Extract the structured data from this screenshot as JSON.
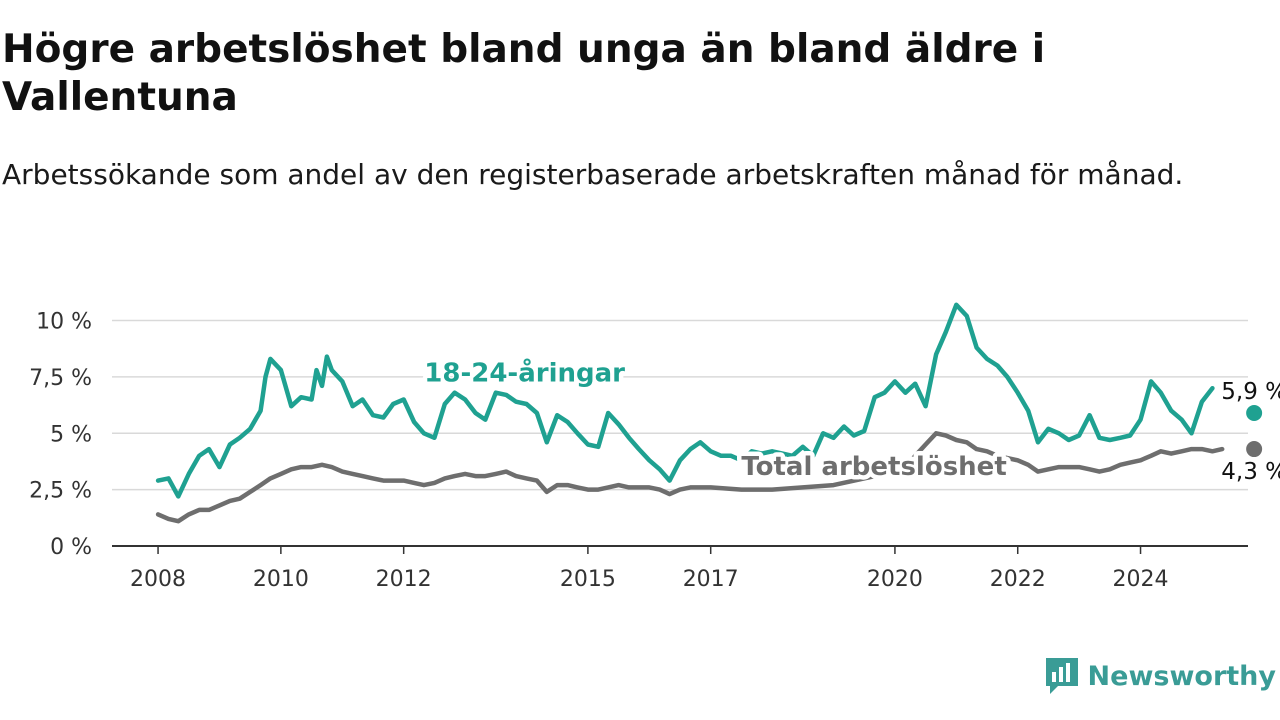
{
  "title": "Högre arbetslöshet bland unga än bland äldre i Vallentuna",
  "subtitle": "Arbetssökande som andel av den registerbaserade arbetskraften månad för månad.",
  "brand": {
    "name": "Newsworthy",
    "icon": "newsworthy-logo-icon",
    "color": "#3a9c96"
  },
  "chart_data": {
    "type": "line",
    "yticks": [
      {
        "value": 0,
        "label": "0 %"
      },
      {
        "value": 2.5,
        "label": "2,5 %"
      },
      {
        "value": 5,
        "label": "5 %"
      },
      {
        "value": 7.5,
        "label": "7,5 %"
      },
      {
        "value": 10,
        "label": "10 %"
      }
    ],
    "xticks": [
      {
        "value": 2008,
        "label": "2008"
      },
      {
        "value": 2010,
        "label": "2010"
      },
      {
        "value": 2012,
        "label": "2012"
      },
      {
        "value": 2015,
        "label": "2015"
      },
      {
        "value": 2017,
        "label": "2017"
      },
      {
        "value": 2020,
        "label": "2020"
      },
      {
        "value": 2022,
        "label": "2022"
      },
      {
        "value": 2024,
        "label": "2024"
      }
    ],
    "xlim": [
      2007.25,
      2025.75
    ],
    "ylim": [
      0,
      11
    ],
    "grid": true,
    "series": [
      {
        "name": "18-24-åringar",
        "color": "#1fa191",
        "end_label": "5,9 %",
        "points": [
          [
            2008.0,
            2.9
          ],
          [
            2008.17,
            3.0
          ],
          [
            2008.33,
            2.2
          ],
          [
            2008.5,
            3.2
          ],
          [
            2008.67,
            4.0
          ],
          [
            2008.83,
            4.3
          ],
          [
            2009.0,
            3.5
          ],
          [
            2009.17,
            4.5
          ],
          [
            2009.33,
            4.8
          ],
          [
            2009.5,
            5.2
          ],
          [
            2009.67,
            6.0
          ],
          [
            2009.75,
            7.5
          ],
          [
            2009.83,
            8.3
          ],
          [
            2010.0,
            7.8
          ],
          [
            2010.17,
            6.2
          ],
          [
            2010.33,
            6.6
          ],
          [
            2010.5,
            6.5
          ],
          [
            2010.58,
            7.8
          ],
          [
            2010.67,
            7.1
          ],
          [
            2010.75,
            8.4
          ],
          [
            2010.83,
            7.8
          ],
          [
            2011.0,
            7.3
          ],
          [
            2011.17,
            6.2
          ],
          [
            2011.33,
            6.5
          ],
          [
            2011.5,
            5.8
          ],
          [
            2011.67,
            5.7
          ],
          [
            2011.83,
            6.3
          ],
          [
            2012.0,
            6.5
          ],
          [
            2012.17,
            5.5
          ],
          [
            2012.33,
            5.0
          ],
          [
            2012.5,
            4.8
          ],
          [
            2012.67,
            6.3
          ],
          [
            2012.83,
            6.8
          ],
          [
            2013.0,
            6.5
          ],
          [
            2013.17,
            5.9
          ],
          [
            2013.33,
            5.6
          ],
          [
            2013.5,
            6.8
          ],
          [
            2013.67,
            6.7
          ],
          [
            2013.83,
            6.4
          ],
          [
            2014.0,
            6.3
          ],
          [
            2014.17,
            5.9
          ],
          [
            2014.33,
            4.6
          ],
          [
            2014.5,
            5.8
          ],
          [
            2014.67,
            5.5
          ],
          [
            2014.83,
            5.0
          ],
          [
            2015.0,
            4.5
          ],
          [
            2015.17,
            4.4
          ],
          [
            2015.33,
            5.9
          ],
          [
            2015.5,
            5.4
          ],
          [
            2015.67,
            4.8
          ],
          [
            2015.83,
            4.3
          ],
          [
            2016.0,
            3.8
          ],
          [
            2016.17,
            3.4
          ],
          [
            2016.33,
            2.9
          ],
          [
            2016.5,
            3.8
          ],
          [
            2016.67,
            4.3
          ],
          [
            2016.83,
            4.6
          ],
          [
            2017.0,
            4.2
          ],
          [
            2017.17,
            4.0
          ],
          [
            2017.33,
            4.0
          ],
          [
            2017.5,
            3.8
          ],
          [
            2017.67,
            4.2
          ],
          [
            2017.83,
            4.1
          ],
          [
            2018.0,
            4.2
          ],
          [
            2018.17,
            4.1
          ],
          [
            2018.33,
            4.0
          ],
          [
            2018.5,
            4.4
          ],
          [
            2018.67,
            4.0
          ],
          [
            2018.83,
            5.0
          ],
          [
            2019.0,
            4.8
          ],
          [
            2019.17,
            5.3
          ],
          [
            2019.33,
            4.9
          ],
          [
            2019.5,
            5.1
          ],
          [
            2019.67,
            6.6
          ],
          [
            2019.83,
            6.8
          ],
          [
            2020.0,
            7.3
          ],
          [
            2020.17,
            6.8
          ],
          [
            2020.33,
            7.2
          ],
          [
            2020.5,
            6.2
          ],
          [
            2020.67,
            8.5
          ],
          [
            2020.83,
            9.5
          ],
          [
            2021.0,
            10.7
          ],
          [
            2021.17,
            10.2
          ],
          [
            2021.33,
            8.8
          ],
          [
            2021.5,
            8.3
          ],
          [
            2021.67,
            8.0
          ],
          [
            2021.83,
            7.5
          ],
          [
            2022.0,
            6.8
          ],
          [
            2022.17,
            6.0
          ],
          [
            2022.33,
            4.6
          ],
          [
            2022.5,
            5.2
          ],
          [
            2022.67,
            5.0
          ],
          [
            2022.83,
            4.7
          ],
          [
            2023.0,
            4.9
          ],
          [
            2023.17,
            5.8
          ],
          [
            2023.33,
            4.8
          ],
          [
            2023.5,
            4.7
          ],
          [
            2023.67,
            4.8
          ],
          [
            2023.83,
            4.9
          ],
          [
            2024.0,
            5.6
          ],
          [
            2024.17,
            7.3
          ],
          [
            2024.33,
            6.8
          ],
          [
            2024.5,
            6.0
          ],
          [
            2024.67,
            5.6
          ],
          [
            2024.83,
            5.0
          ],
          [
            2025.0,
            6.4
          ],
          [
            2025.17,
            7.0
          ]
        ],
        "end_point": [
          2025.85,
          5.9
        ]
      },
      {
        "name": "Total arbetslöshet",
        "color": "#6e6e6e",
        "end_label": "4,3 %",
        "points": [
          [
            2008.0,
            1.4
          ],
          [
            2008.17,
            1.2
          ],
          [
            2008.33,
            1.1
          ],
          [
            2008.5,
            1.4
          ],
          [
            2008.67,
            1.6
          ],
          [
            2008.83,
            1.6
          ],
          [
            2009.0,
            1.8
          ],
          [
            2009.17,
            2.0
          ],
          [
            2009.33,
            2.1
          ],
          [
            2009.5,
            2.4
          ],
          [
            2009.67,
            2.7
          ],
          [
            2009.83,
            3.0
          ],
          [
            2010.0,
            3.2
          ],
          [
            2010.17,
            3.4
          ],
          [
            2010.33,
            3.5
          ],
          [
            2010.5,
            3.5
          ],
          [
            2010.67,
            3.6
          ],
          [
            2010.83,
            3.5
          ],
          [
            2011.0,
            3.3
          ],
          [
            2011.17,
            3.2
          ],
          [
            2011.33,
            3.1
          ],
          [
            2011.5,
            3.0
          ],
          [
            2011.67,
            2.9
          ],
          [
            2011.83,
            2.9
          ],
          [
            2012.0,
            2.9
          ],
          [
            2012.17,
            2.8
          ],
          [
            2012.33,
            2.7
          ],
          [
            2012.5,
            2.8
          ],
          [
            2012.67,
            3.0
          ],
          [
            2012.83,
            3.1
          ],
          [
            2013.0,
            3.2
          ],
          [
            2013.17,
            3.1
          ],
          [
            2013.33,
            3.1
          ],
          [
            2013.5,
            3.2
          ],
          [
            2013.67,
            3.3
          ],
          [
            2013.83,
            3.1
          ],
          [
            2014.0,
            3.0
          ],
          [
            2014.17,
            2.9
          ],
          [
            2014.33,
            2.4
          ],
          [
            2014.5,
            2.7
          ],
          [
            2014.67,
            2.7
          ],
          [
            2014.83,
            2.6
          ],
          [
            2015.0,
            2.5
          ],
          [
            2015.17,
            2.5
          ],
          [
            2015.33,
            2.6
          ],
          [
            2015.5,
            2.7
          ],
          [
            2015.67,
            2.6
          ],
          [
            2015.83,
            2.6
          ],
          [
            2016.0,
            2.6
          ],
          [
            2016.17,
            2.5
          ],
          [
            2016.33,
            2.3
          ],
          [
            2016.5,
            2.5
          ],
          [
            2016.67,
            2.6
          ],
          [
            2016.83,
            2.6
          ],
          [
            2017.0,
            2.6
          ],
          [
            2017.5,
            2.5
          ],
          [
            2018.0,
            2.5
          ],
          [
            2018.5,
            2.6
          ],
          [
            2019.0,
            2.7
          ],
          [
            2019.5,
            3.0
          ],
          [
            2020.0,
            3.3
          ],
          [
            2020.17,
            3.5
          ],
          [
            2020.33,
            4.0
          ],
          [
            2020.5,
            4.5
          ],
          [
            2020.67,
            5.0
          ],
          [
            2020.83,
            4.9
          ],
          [
            2021.0,
            4.7
          ],
          [
            2021.17,
            4.6
          ],
          [
            2021.33,
            4.3
          ],
          [
            2021.5,
            4.2
          ],
          [
            2021.67,
            4.0
          ],
          [
            2021.83,
            3.9
          ],
          [
            2022.0,
            3.8
          ],
          [
            2022.17,
            3.6
          ],
          [
            2022.33,
            3.3
          ],
          [
            2022.5,
            3.4
          ],
          [
            2022.67,
            3.5
          ],
          [
            2022.83,
            3.5
          ],
          [
            2023.0,
            3.5
          ],
          [
            2023.17,
            3.4
          ],
          [
            2023.33,
            3.3
          ],
          [
            2023.5,
            3.4
          ],
          [
            2023.67,
            3.6
          ],
          [
            2023.83,
            3.7
          ],
          [
            2024.0,
            3.8
          ],
          [
            2024.17,
            4.0
          ],
          [
            2024.33,
            4.2
          ],
          [
            2024.5,
            4.1
          ],
          [
            2024.67,
            4.2
          ],
          [
            2024.83,
            4.3
          ],
          [
            2025.0,
            4.3
          ],
          [
            2025.17,
            4.2
          ],
          [
            2025.33,
            4.3
          ]
        ],
        "end_point": [
          2025.85,
          4.3
        ]
      }
    ]
  }
}
